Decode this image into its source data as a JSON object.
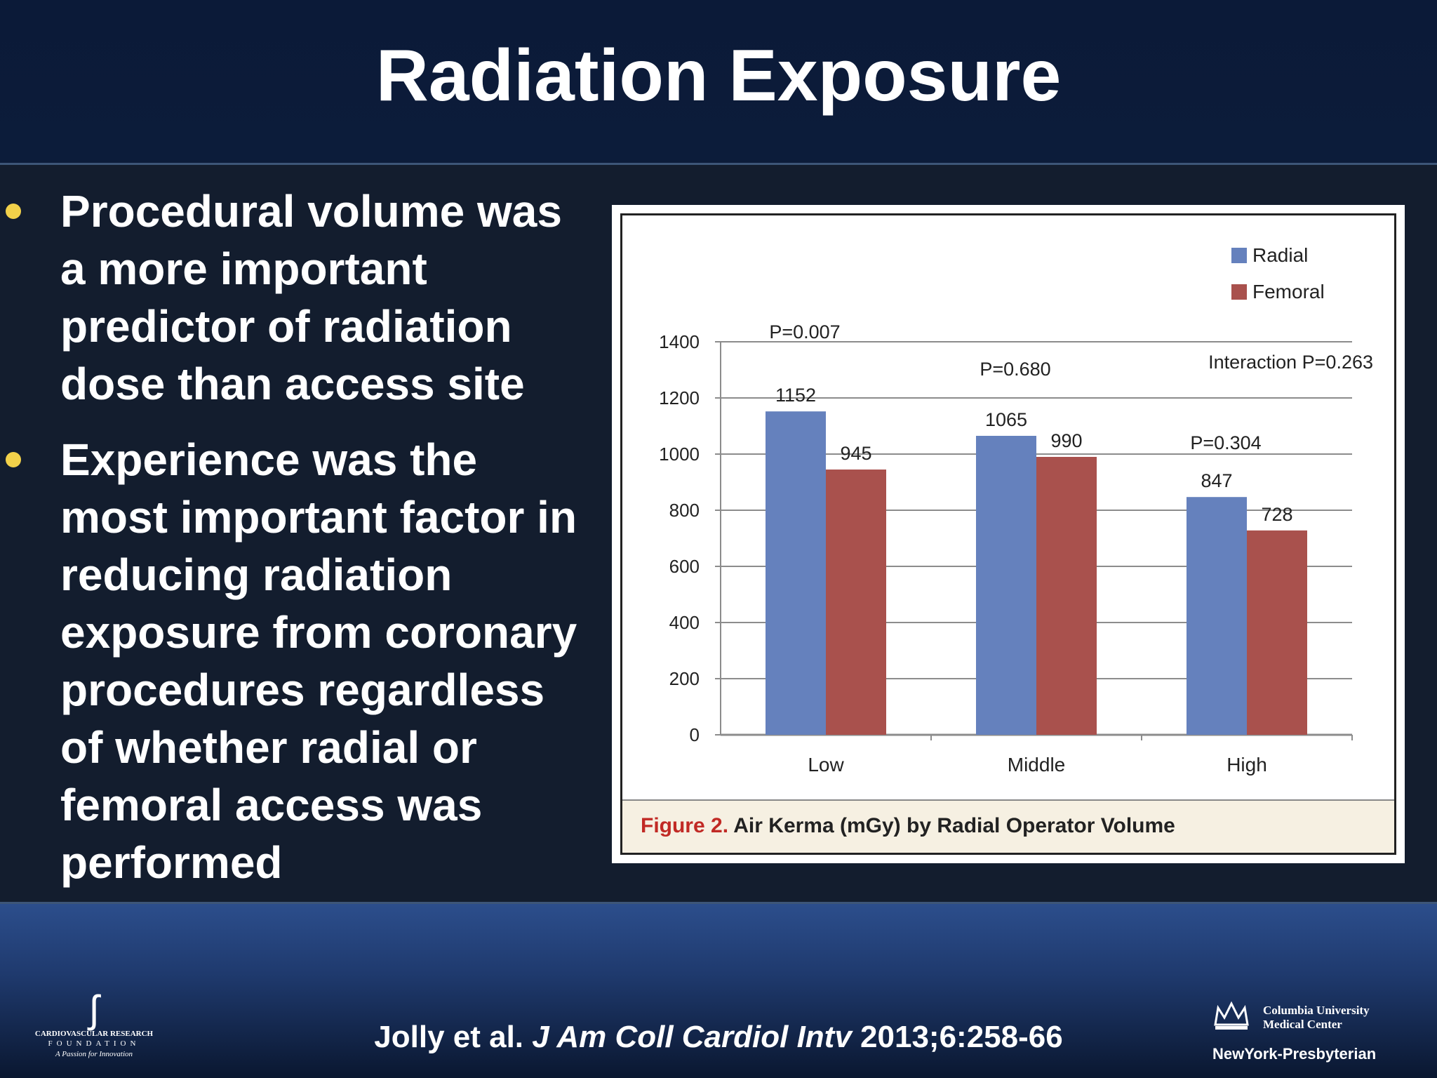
{
  "slide": {
    "title": "Radiation Exposure",
    "bullets": [
      "Procedural volume was a more important predictor of radiation dose than access site",
      "Experience was the most important factor in reducing radiation exposure from coronary procedures regardless of whether radial or femoral access was performed"
    ],
    "citation_authors": "Jolly et al.",
    "citation_journal": "J Am Coll Cardiol Intv",
    "citation_ref": "2013;6:258-66"
  },
  "figure": {
    "caption_label": "Figure 2.",
    "caption_text": "Air Kerma (mGy) by Radial Operator Volume"
  },
  "chart_data": {
    "type": "bar",
    "categories": [
      "Low",
      "Middle",
      "High"
    ],
    "series": [
      {
        "name": "Radial",
        "values": [
          1152,
          1065,
          847
        ],
        "color": "#6581bd"
      },
      {
        "name": "Femoral",
        "values": [
          945,
          990,
          728
        ],
        "color": "#a9514d"
      }
    ],
    "data_labels": {
      "Radial": [
        "1152",
        "1065",
        "847"
      ],
      "Femoral": [
        "945",
        "990",
        "728"
      ]
    },
    "p_values": [
      "P=0.007",
      "P=0.680",
      "P=0.304"
    ],
    "interaction": "Interaction P=0.263",
    "ylim": [
      0,
      1400
    ],
    "yticks": [
      0,
      200,
      400,
      600,
      800,
      1000,
      1200,
      1400
    ],
    "grid": true,
    "legend_position": "top-right"
  },
  "logos": {
    "crf_name": "CARDIOVASCULAR RESEARCH",
    "crf_foundation": "FOUNDATION",
    "crf_tagline": "A Passion for Innovation",
    "cu_line1": "Columbia University",
    "cu_line2": "Medical Center",
    "nyp": "NewYork-Presbyterian"
  }
}
